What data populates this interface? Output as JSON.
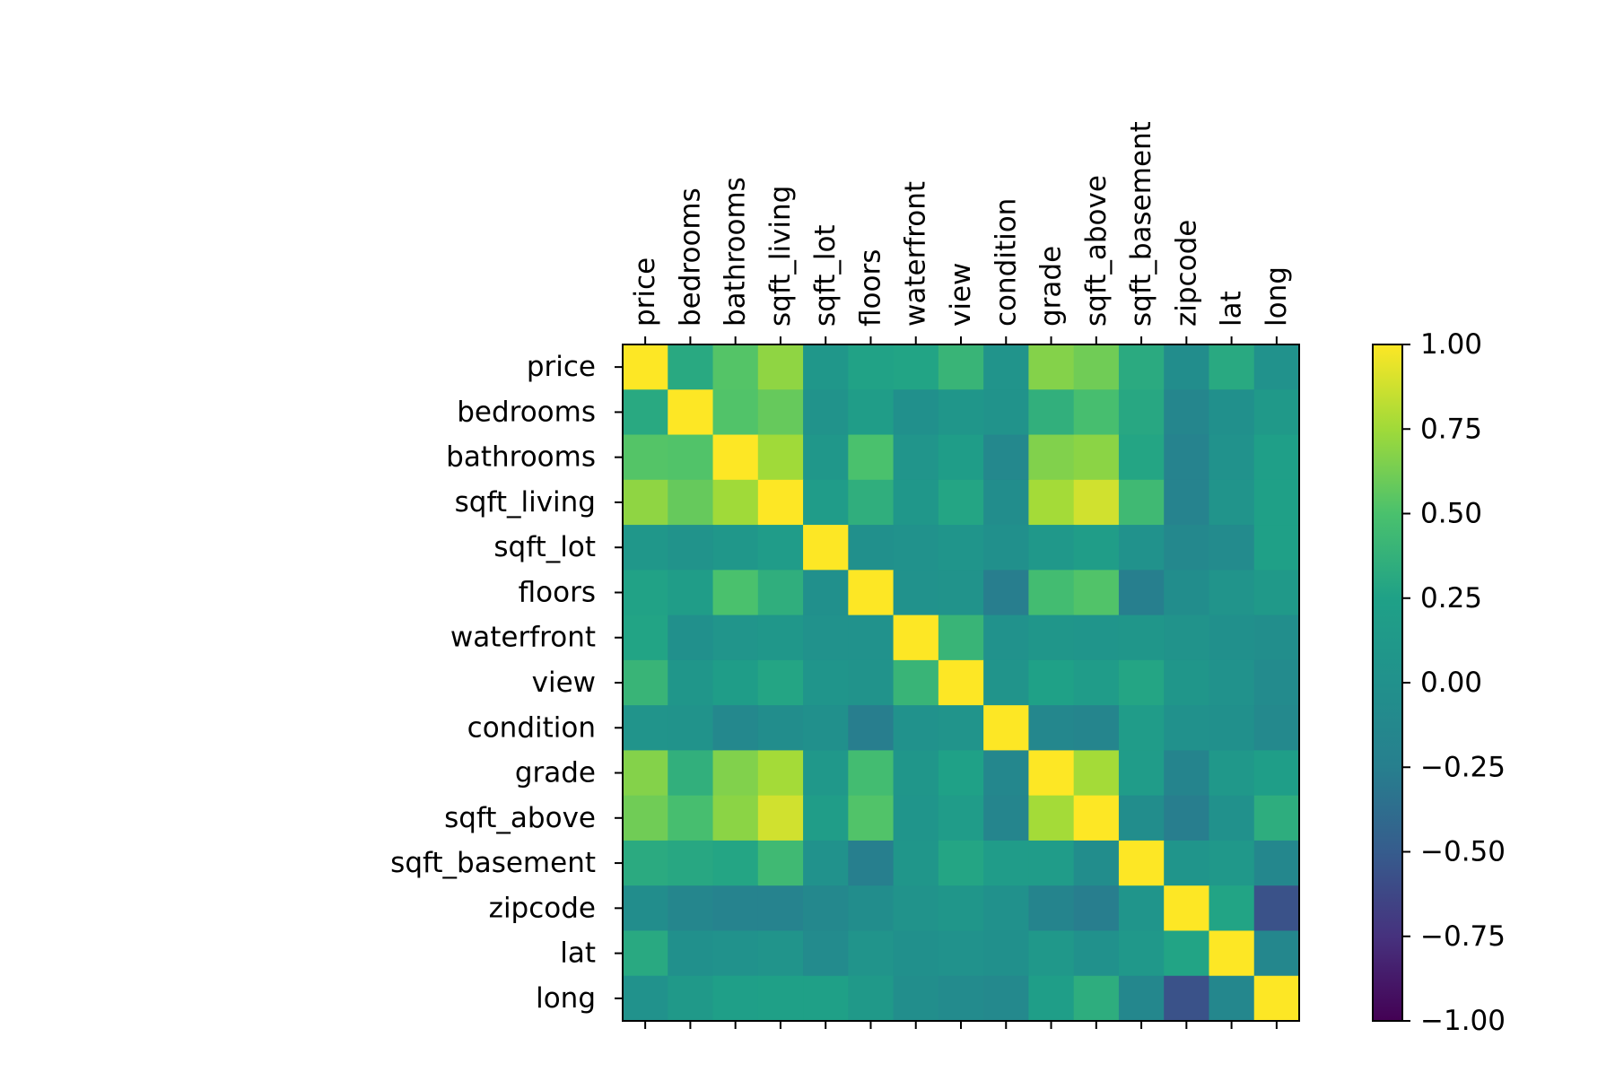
{
  "chart_data": {
    "type": "heatmap",
    "title": "",
    "xlabel": "",
    "ylabel": "",
    "x_labels": [
      "price",
      "bedrooms",
      "bathrooms",
      "sqft_living",
      "sqft_lot",
      "floors",
      "waterfront",
      "view",
      "condition",
      "grade",
      "sqft_above",
      "sqft_basement",
      "zipcode",
      "lat",
      "long"
    ],
    "y_labels": [
      "price",
      "bedrooms",
      "bathrooms",
      "sqft_living",
      "sqft_lot",
      "floors",
      "waterfront",
      "view",
      "condition",
      "grade",
      "sqft_above",
      "sqft_basement",
      "zipcode",
      "lat",
      "long"
    ],
    "values": [
      [
        1.0,
        0.31,
        0.53,
        0.7,
        0.09,
        0.26,
        0.27,
        0.4,
        0.04,
        0.67,
        0.61,
        0.32,
        -0.05,
        0.31,
        0.02
      ],
      [
        0.31,
        1.0,
        0.52,
        0.58,
        0.03,
        0.18,
        -0.01,
        0.08,
        0.03,
        0.36,
        0.48,
        0.3,
        -0.15,
        -0.01,
        0.13
      ],
      [
        0.53,
        0.52,
        1.0,
        0.75,
        0.09,
        0.5,
        0.06,
        0.19,
        -0.12,
        0.66,
        0.69,
        0.28,
        -0.2,
        0.02,
        0.22
      ],
      [
        0.7,
        0.58,
        0.75,
        1.0,
        0.17,
        0.35,
        0.1,
        0.28,
        -0.06,
        0.76,
        0.88,
        0.44,
        -0.2,
        0.05,
        0.24
      ],
      [
        0.09,
        0.03,
        0.09,
        0.17,
        1.0,
        -0.01,
        0.02,
        0.07,
        -0.01,
        0.11,
        0.18,
        0.02,
        -0.13,
        -0.09,
        0.23
      ],
      [
        0.26,
        0.18,
        0.5,
        0.35,
        -0.01,
        1.0,
        0.02,
        0.03,
        -0.26,
        0.46,
        0.52,
        -0.25,
        -0.06,
        0.05,
        0.13
      ],
      [
        0.27,
        -0.01,
        0.06,
        0.1,
        0.02,
        0.02,
        1.0,
        0.4,
        0.02,
        0.08,
        0.07,
        0.08,
        0.03,
        -0.01,
        -0.04
      ],
      [
        0.4,
        0.08,
        0.19,
        0.28,
        0.07,
        0.03,
        0.4,
        1.0,
        0.05,
        0.25,
        0.17,
        0.28,
        0.08,
        0.01,
        -0.08
      ],
      [
        0.04,
        0.03,
        -0.12,
        -0.06,
        -0.01,
        -0.26,
        0.02,
        0.05,
        1.0,
        -0.14,
        -0.16,
        0.17,
        0.0,
        -0.01,
        -0.11
      ],
      [
        0.67,
        0.36,
        0.66,
        0.76,
        0.11,
        0.46,
        0.08,
        0.25,
        -0.14,
        1.0,
        0.76,
        0.17,
        -0.18,
        0.11,
        0.2
      ],
      [
        0.61,
        0.48,
        0.69,
        0.88,
        0.18,
        0.52,
        0.07,
        0.17,
        -0.16,
        0.76,
        1.0,
        -0.05,
        -0.26,
        -0.0,
        0.34
      ],
      [
        0.32,
        0.3,
        0.28,
        0.44,
        0.02,
        -0.25,
        0.08,
        0.28,
        0.17,
        0.17,
        -0.05,
        1.0,
        0.07,
        0.11,
        -0.14
      ],
      [
        -0.05,
        -0.15,
        -0.2,
        -0.2,
        -0.13,
        -0.06,
        0.03,
        0.08,
        0.0,
        -0.18,
        -0.26,
        0.07,
        1.0,
        0.27,
        -0.56
      ],
      [
        0.31,
        -0.01,
        0.02,
        0.05,
        -0.09,
        0.05,
        -0.01,
        0.01,
        -0.01,
        0.11,
        -0.0,
        0.11,
        0.27,
        1.0,
        -0.14
      ],
      [
        0.02,
        0.13,
        0.22,
        0.24,
        0.23,
        0.13,
        -0.04,
        -0.08,
        -0.11,
        0.2,
        0.34,
        -0.14,
        -0.56,
        -0.14,
        1.0
      ]
    ],
    "vmin": -1.0,
    "vmax": 1.0,
    "colormap": "viridis",
    "colorbar_ticks": [
      "1.00",
      "0.75",
      "0.50",
      "0.25",
      "0.00",
      "−0.25",
      "−0.50",
      "−0.75",
      "−1.00"
    ],
    "colorbar_tick_values": [
      1.0,
      0.75,
      0.5,
      0.25,
      0.0,
      -0.25,
      -0.5,
      -0.75,
      -1.0
    ]
  }
}
